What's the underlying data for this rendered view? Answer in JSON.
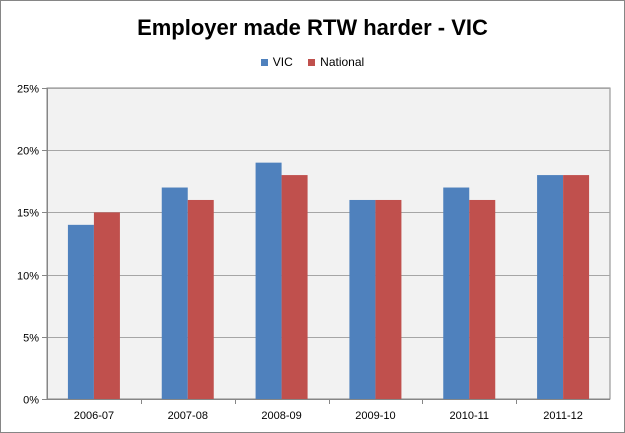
{
  "chart_data": {
    "type": "bar",
    "title": "Employer made RTW harder - VIC",
    "xlabel": "",
    "ylabel": "",
    "categories": [
      "2006-07",
      "2007-08",
      "2008-09",
      "2009-10",
      "2010-11",
      "2011-12"
    ],
    "series": [
      {
        "name": "VIC",
        "color": "#4F81BD",
        "values": [
          14,
          17,
          19,
          16,
          17,
          18
        ]
      },
      {
        "name": "National",
        "color": "#C0504D",
        "values": [
          15,
          16,
          18,
          16,
          16,
          18
        ]
      }
    ],
    "ylim": [
      0,
      25
    ],
    "yticks": [
      0,
      5,
      10,
      15,
      20,
      25
    ],
    "ytick_labels": [
      "0%",
      "5%",
      "10%",
      "15%",
      "20%",
      "25%"
    ],
    "grid": true,
    "legend_position": "top",
    "plot_background": "#F2F2F2",
    "gridline_color": "#A6A6A6"
  }
}
